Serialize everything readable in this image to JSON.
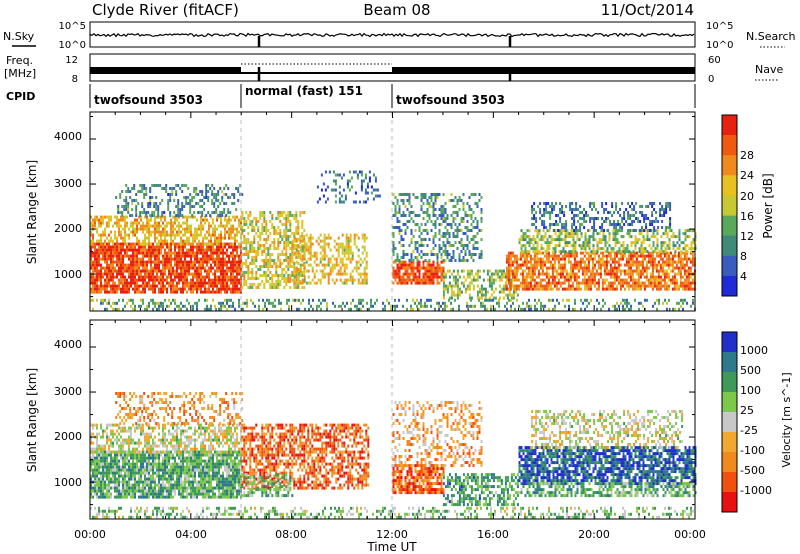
{
  "header": {
    "station": "Clyde River (fitACF)",
    "beam": "Beam 08",
    "date": "11/Oct/2014"
  },
  "side_labels": {
    "nsky": "N.Sky",
    "nsearch": "N.Search",
    "freq": "Freq.",
    "freq_unit": "[MHz]",
    "nave": "Nave",
    "cpid": "CPID"
  },
  "top_panels": {
    "nsky_ticks": [
      "10^5",
      "10^0"
    ],
    "nsearch_ticks": [
      "10^5",
      "10^0"
    ],
    "freq_ticks": [
      "12",
      "8"
    ],
    "nave_ticks": [
      "60",
      "0"
    ],
    "cpid_modes": [
      {
        "label": "twofsound 3503",
        "start_h": 0,
        "end_h": 6
      },
      {
        "label": "normal (fast) 151",
        "start_h": 6,
        "end_h": 12
      },
      {
        "label": "twofsound 3503",
        "start_h": 12,
        "end_h": 24
      }
    ]
  },
  "chart_data": [
    {
      "type": "heatmap",
      "title": "Power",
      "xlabel": "",
      "ylabel": "Slant Range [km]",
      "xlim": [
        0,
        24
      ],
      "ylim": [
        180,
        4600
      ],
      "y_ticks": [
        "1000",
        "2000",
        "3000",
        "4000"
      ],
      "colorbar_label": "Power [dB]",
      "colorbar_ticks": [
        "4",
        "8",
        "12",
        "16",
        "20",
        "24",
        "28"
      ],
      "colorbar_colors": [
        "#1e2bd6",
        "#3a5dbd",
        "#3f8a78",
        "#5aa85a",
        "#c8c832",
        "#e8c020",
        "#f08a1e",
        "#f05a10",
        "#e82010"
      ],
      "scatter_regions": [
        {
          "t": [
            0.0,
            6.0
          ],
          "r": [
            600,
            1700
          ],
          "level": 0.88,
          "density": 0.85
        },
        {
          "t": [
            0.0,
            6.0
          ],
          "r": [
            1700,
            2300
          ],
          "level": 0.62,
          "density": 0.6
        },
        {
          "t": [
            1.0,
            6.0
          ],
          "r": [
            2300,
            3000
          ],
          "level": 0.28,
          "density": 0.35
        },
        {
          "t": [
            6.0,
            8.5
          ],
          "r": [
            700,
            2400
          ],
          "level": 0.55,
          "density": 0.55
        },
        {
          "t": [
            8.0,
            11.0
          ],
          "r": [
            800,
            1900
          ],
          "level": 0.6,
          "density": 0.45
        },
        {
          "t": [
            9.0,
            11.5
          ],
          "r": [
            2600,
            3300
          ],
          "level": 0.22,
          "density": 0.25
        },
        {
          "t": [
            12.0,
            14.0
          ],
          "r": [
            800,
            1300
          ],
          "level": 0.85,
          "density": 0.8
        },
        {
          "t": [
            12.0,
            15.5
          ],
          "r": [
            1300,
            2800
          ],
          "level": 0.3,
          "density": 0.4
        },
        {
          "t": [
            14.0,
            17.0
          ],
          "r": [
            500,
            1100
          ],
          "level": 0.45,
          "density": 0.55
        },
        {
          "t": [
            16.5,
            24.0
          ],
          "r": [
            700,
            1500
          ],
          "level": 0.78,
          "density": 0.75
        },
        {
          "t": [
            17.0,
            24.0
          ],
          "r": [
            1500,
            2000
          ],
          "level": 0.45,
          "density": 0.55
        },
        {
          "t": [
            17.5,
            23.0
          ],
          "r": [
            2000,
            2600
          ],
          "level": 0.22,
          "density": 0.4
        },
        {
          "t": [
            0.0,
            24.0
          ],
          "r": [
            200,
            450
          ],
          "level": 0.35,
          "density": 0.35
        }
      ]
    },
    {
      "type": "heatmap",
      "title": "Velocity",
      "xlabel": "Time UT",
      "ylabel": "Slant Range [km]",
      "xlim": [
        0,
        24
      ],
      "ylim": [
        180,
        4600
      ],
      "x_ticks": [
        "00:00",
        "04:00",
        "08:00",
        "12:00",
        "16:00",
        "20:00",
        "00:00"
      ],
      "y_ticks": [
        "1000",
        "2000",
        "3000",
        "4000"
      ],
      "colorbar_label": "Velocity [m s^-1]",
      "colorbar_ticks": [
        "-1000",
        "-500",
        "-100",
        "-25",
        "25",
        "100",
        "500",
        "1000"
      ],
      "colorbar_colors": [
        "#e81010",
        "#f05010",
        "#f08a1e",
        "#f0a830",
        "#c8c8c8",
        "#7cc84a",
        "#3f9a5a",
        "#2f7a8a",
        "#2030c8"
      ],
      "scatter_regions": [
        {
          "t": [
            0.0,
            6.0
          ],
          "r": [
            700,
            1700
          ],
          "level": 0.68,
          "density": 0.85
        },
        {
          "t": [
            0.0,
            6.0
          ],
          "r": [
            1700,
            2300
          ],
          "level": 0.5,
          "density": 0.6
        },
        {
          "t": [
            1.0,
            6.0
          ],
          "r": [
            2300,
            3000
          ],
          "level": 0.3,
          "density": 0.35
        },
        {
          "t": [
            6.0,
            11.0
          ],
          "r": [
            900,
            2300
          ],
          "level": 0.2,
          "density": 0.6
        },
        {
          "t": [
            6.0,
            8.0
          ],
          "r": [
            700,
            1200
          ],
          "level": 0.65,
          "density": 0.5
        },
        {
          "t": [
            12.0,
            14.0
          ],
          "r": [
            800,
            1400
          ],
          "level": 0.2,
          "density": 0.75
        },
        {
          "t": [
            12.0,
            15.5
          ],
          "r": [
            1400,
            2800
          ],
          "level": 0.35,
          "density": 0.35
        },
        {
          "t": [
            14.0,
            17.0
          ],
          "r": [
            500,
            1200
          ],
          "level": 0.72,
          "density": 0.55
        },
        {
          "t": [
            17.0,
            24.0
          ],
          "r": [
            1000,
            1800
          ],
          "level": 0.88,
          "density": 0.75
        },
        {
          "t": [
            17.0,
            24.0
          ],
          "r": [
            700,
            1000
          ],
          "level": 0.68,
          "density": 0.6
        },
        {
          "t": [
            17.5,
            23.5
          ],
          "r": [
            1800,
            2600
          ],
          "level": 0.5,
          "density": 0.45
        },
        {
          "t": [
            0.0,
            24.0
          ],
          "r": [
            200,
            450
          ],
          "level": 0.6,
          "density": 0.35
        }
      ]
    }
  ]
}
